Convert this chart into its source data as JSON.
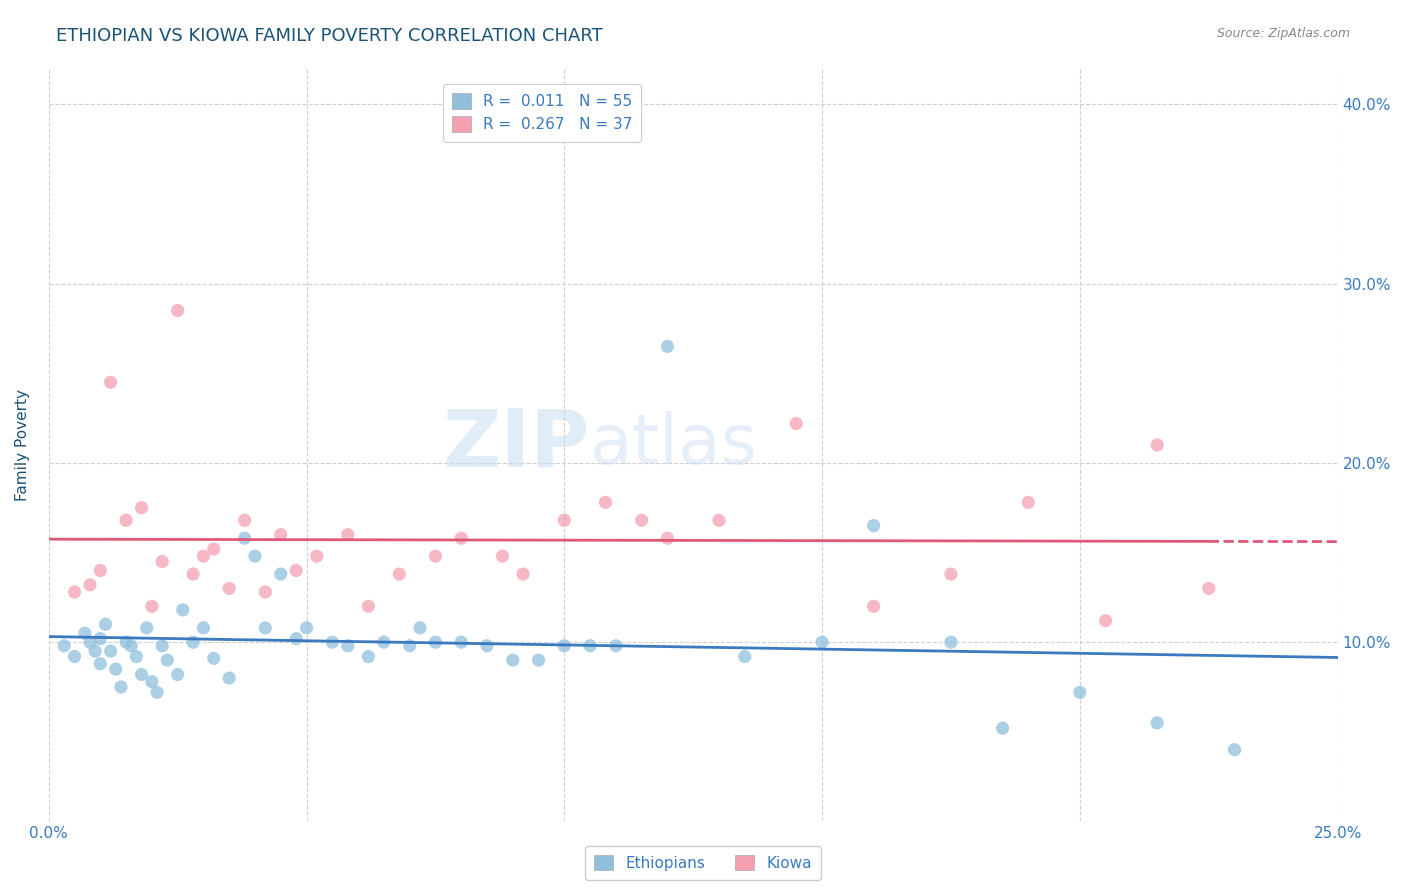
{
  "title": "ETHIOPIAN VS KIOWA FAMILY POVERTY CORRELATION CHART",
  "source": "Source: ZipAtlas.com",
  "ylabel": "Family Poverty",
  "xlim": [
    0.0,
    0.25
  ],
  "ylim": [
    0.0,
    0.42
  ],
  "xtick_positions": [
    0.0,
    0.05,
    0.1,
    0.15,
    0.2,
    0.25
  ],
  "xticklabels": [
    "0.0%",
    "",
    "",
    "",
    "",
    "25.0%"
  ],
  "ytick_positions": [
    0.0,
    0.1,
    0.2,
    0.3,
    0.4
  ],
  "yticklabels_right": [
    "",
    "10.0%",
    "20.0%",
    "30.0%",
    "40.0%"
  ],
  "r_ethiopian": 0.011,
  "n_ethiopian": 55,
  "r_kiowa": 0.267,
  "n_kiowa": 37,
  "color_ethiopian": "#8fbfdb",
  "color_kiowa": "#f4a0b0",
  "color_line_ethiopian": "#3a7abf",
  "color_line_kiowa": "#e05878",
  "watermark": "ZIPatlas",
  "background_color": "#ffffff",
  "grid_color": "#d0d0d0",
  "title_color": "#1a5276",
  "axis_label_color": "#1a5276",
  "tick_color": "#3a7abf",
  "ethiopian_x": [
    0.003,
    0.005,
    0.007,
    0.008,
    0.009,
    0.01,
    0.01,
    0.011,
    0.012,
    0.013,
    0.014,
    0.015,
    0.016,
    0.017,
    0.018,
    0.019,
    0.02,
    0.021,
    0.022,
    0.023,
    0.025,
    0.026,
    0.028,
    0.03,
    0.032,
    0.035,
    0.038,
    0.04,
    0.042,
    0.045,
    0.048,
    0.05,
    0.055,
    0.058,
    0.062,
    0.065,
    0.07,
    0.072,
    0.075,
    0.08,
    0.085,
    0.09,
    0.095,
    0.1,
    0.105,
    0.11,
    0.12,
    0.135,
    0.15,
    0.16,
    0.175,
    0.185,
    0.2,
    0.215,
    0.23
  ],
  "ethiopian_y": [
    0.098,
    0.092,
    0.105,
    0.1,
    0.095,
    0.088,
    0.102,
    0.11,
    0.095,
    0.085,
    0.075,
    0.1,
    0.098,
    0.092,
    0.082,
    0.108,
    0.078,
    0.072,
    0.098,
    0.09,
    0.082,
    0.118,
    0.1,
    0.108,
    0.091,
    0.08,
    0.158,
    0.148,
    0.108,
    0.138,
    0.102,
    0.108,
    0.1,
    0.098,
    0.092,
    0.1,
    0.098,
    0.108,
    0.1,
    0.1,
    0.098,
    0.09,
    0.09,
    0.098,
    0.098,
    0.098,
    0.265,
    0.092,
    0.1,
    0.165,
    0.1,
    0.052,
    0.072,
    0.055,
    0.04
  ],
  "kiowa_x": [
    0.005,
    0.008,
    0.01,
    0.012,
    0.015,
    0.018,
    0.02,
    0.022,
    0.025,
    0.028,
    0.03,
    0.032,
    0.035,
    0.038,
    0.042,
    0.045,
    0.048,
    0.052,
    0.058,
    0.062,
    0.068,
    0.075,
    0.08,
    0.088,
    0.092,
    0.1,
    0.108,
    0.115,
    0.12,
    0.13,
    0.145,
    0.16,
    0.175,
    0.19,
    0.205,
    0.215,
    0.225
  ],
  "kiowa_y": [
    0.128,
    0.132,
    0.14,
    0.245,
    0.168,
    0.175,
    0.12,
    0.145,
    0.285,
    0.138,
    0.148,
    0.152,
    0.13,
    0.168,
    0.128,
    0.16,
    0.14,
    0.148,
    0.16,
    0.12,
    0.138,
    0.148,
    0.158,
    0.148,
    0.138,
    0.168,
    0.178,
    0.168,
    0.158,
    0.168,
    0.222,
    0.12,
    0.138,
    0.178,
    0.112,
    0.21,
    0.13
  ]
}
